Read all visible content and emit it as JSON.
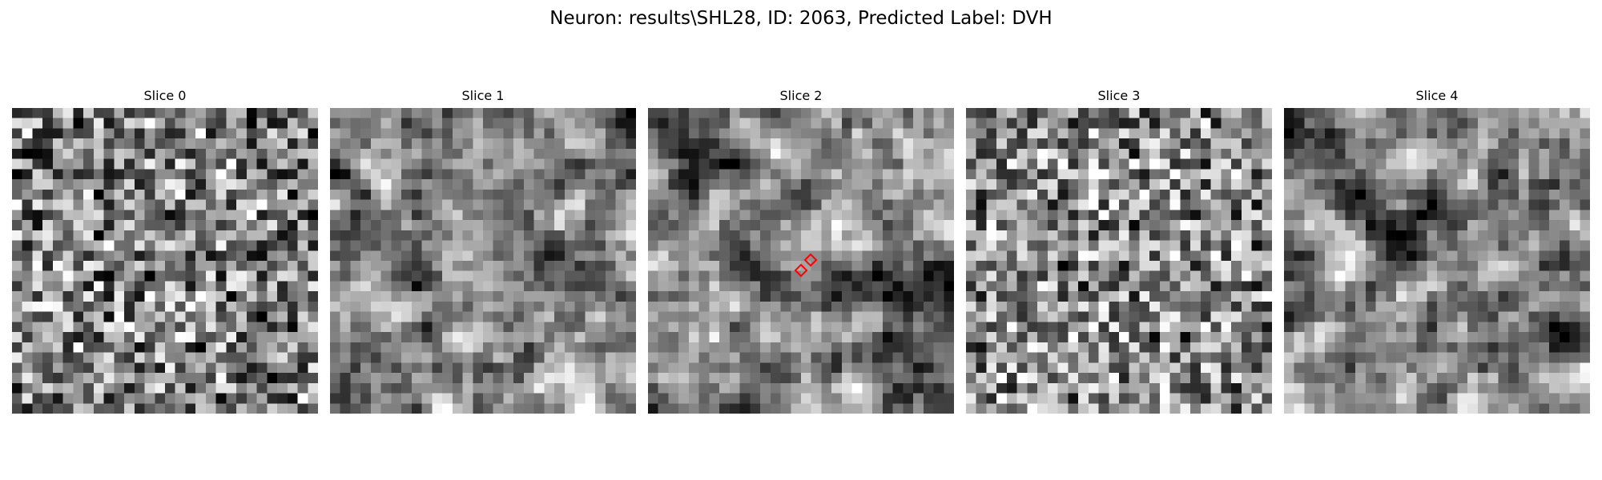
{
  "figure": {
    "title": "Neuron: results\\SHL28, ID: 2063, Predicted Label: DVH"
  },
  "slices": [
    {
      "title": "Slice 0",
      "texture": "uniform-noise",
      "seed": 11
    },
    {
      "title": "Slice 1",
      "texture": "bright-upper-right",
      "seed": 23
    },
    {
      "title": "Slice 2",
      "texture": "dark-lower-right",
      "seed": 37
    },
    {
      "title": "Slice 3",
      "texture": "uniform-noise-light",
      "seed": 53
    },
    {
      "title": "Slice 4",
      "texture": "dark-band-top",
      "seed": 71
    }
  ],
  "markers": {
    "color": "#ff0000",
    "shape": "diamond",
    "on_slice": "Slice 2",
    "count": 2
  }
}
